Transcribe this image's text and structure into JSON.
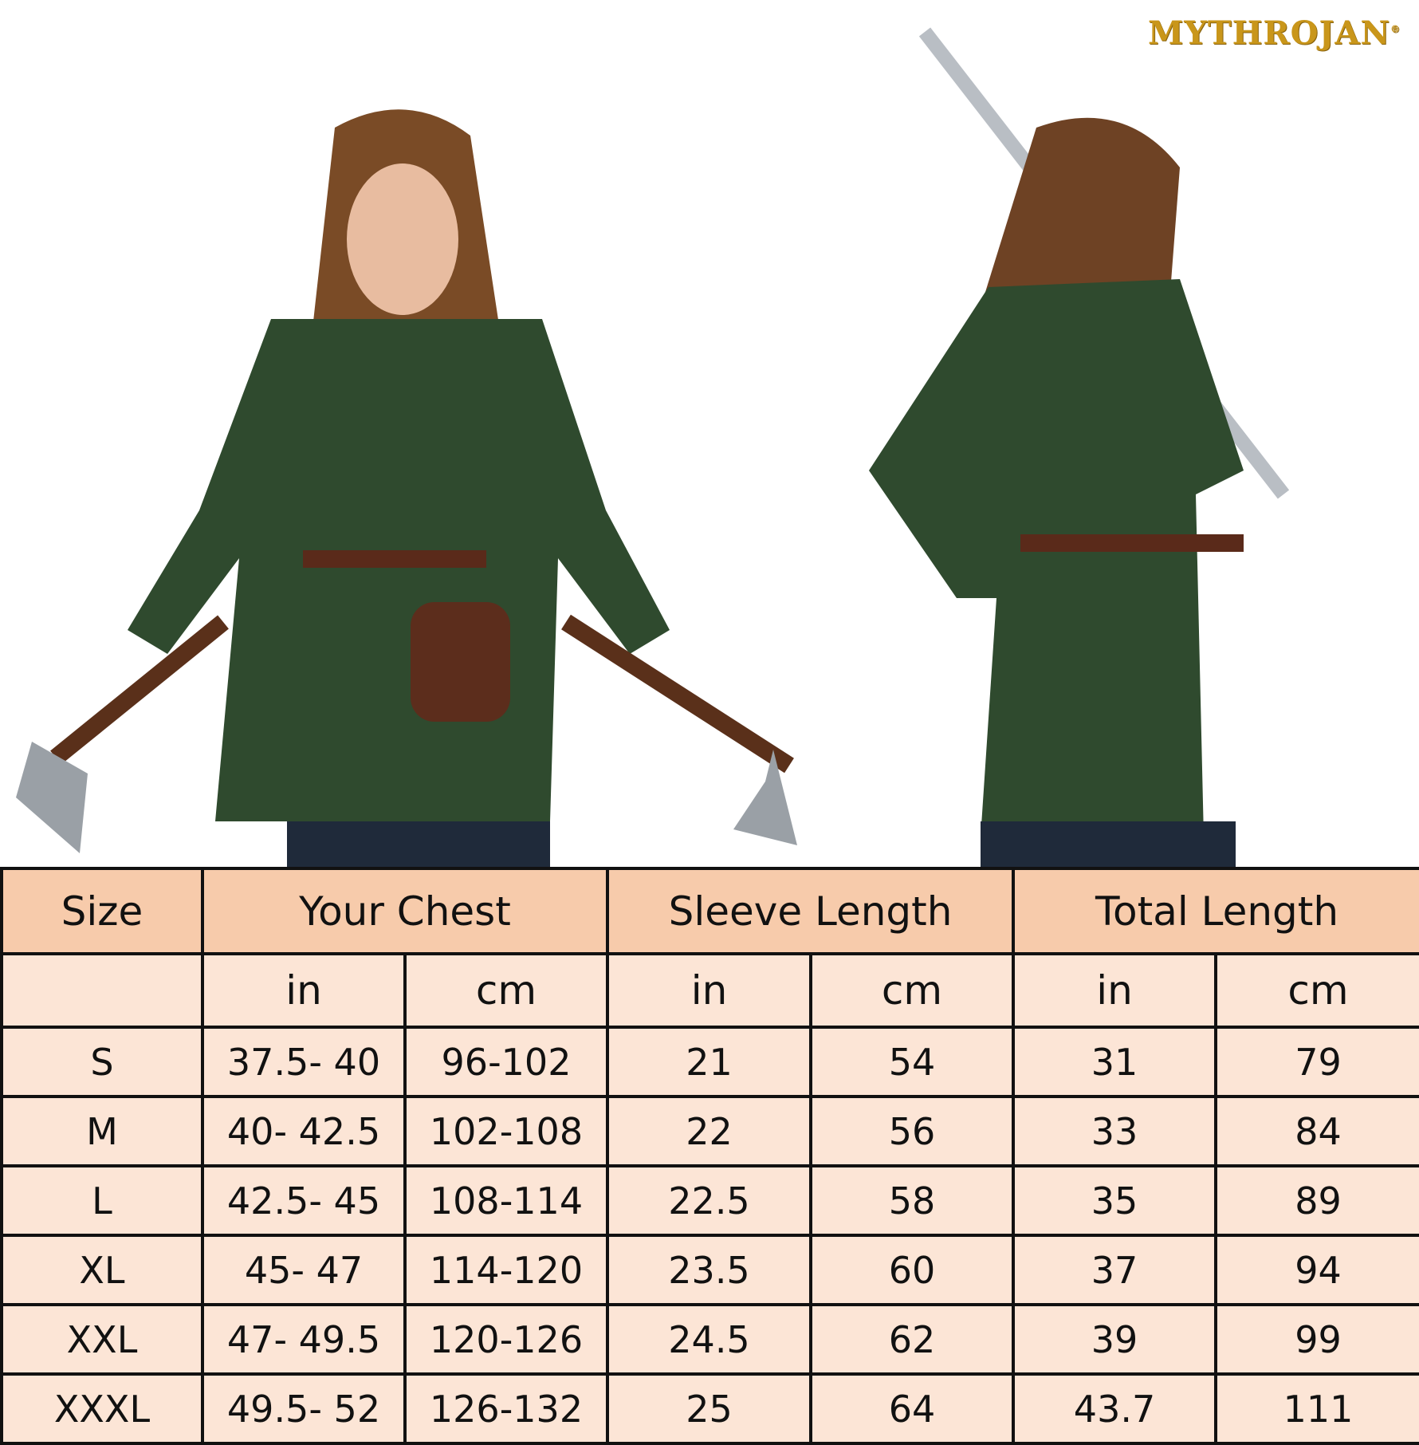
{
  "brand": {
    "logo_text": "MYTHROJAN",
    "registered": "®"
  },
  "photos": {
    "left": "model-front-axes",
    "right": "model-back-sword",
    "tunic_color": "#2f4a2e"
  },
  "table": {
    "headers": [
      "Size",
      "Your Chest",
      "Sleeve Length",
      "Total Length"
    ],
    "units": [
      "in",
      "cm",
      "in",
      "cm",
      "in",
      "cm"
    ],
    "rows": [
      {
        "size": "S",
        "chest_in": "37.5- 40",
        "chest_cm": "96-102",
        "sleeve_in": "21",
        "sleeve_cm": "54",
        "total_in": "31",
        "total_cm": "79"
      },
      {
        "size": "M",
        "chest_in": "40- 42.5",
        "chest_cm": "102-108",
        "sleeve_in": "22",
        "sleeve_cm": "56",
        "total_in": "33",
        "total_cm": "84"
      },
      {
        "size": "L",
        "chest_in": "42.5- 45",
        "chest_cm": "108-114",
        "sleeve_in": "22.5",
        "sleeve_cm": "58",
        "total_in": "35",
        "total_cm": "89"
      },
      {
        "size": "XL",
        "chest_in": "45- 47",
        "chest_cm": "114-120",
        "sleeve_in": "23.5",
        "sleeve_cm": "60",
        "total_in": "37",
        "total_cm": "94"
      },
      {
        "size": "XXL",
        "chest_in": "47- 49.5",
        "chest_cm": "120-126",
        "sleeve_in": "24.5",
        "sleeve_cm": "62",
        "total_in": "39",
        "total_cm": "99"
      },
      {
        "size": "XXXL",
        "chest_in": "49.5- 52",
        "chest_cm": "126-132",
        "sleeve_in": "25",
        "sleeve_cm": "64",
        "total_in": "43.7",
        "total_cm": "111"
      }
    ],
    "header_bg": "#f7cbab",
    "body_bg": "#fce5d6"
  }
}
